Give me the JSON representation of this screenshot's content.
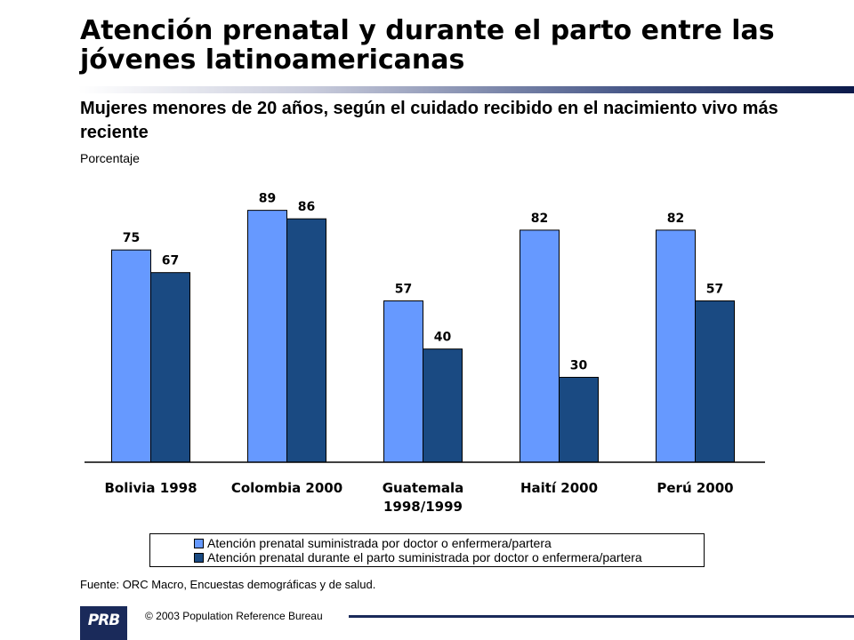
{
  "header": {
    "title": "Atención prenatal y durante el parto entre las jóvenes latinoamericanas",
    "subtitle": "Mujeres menores de 20 años, según el cuidado recibido en el nacimiento vivo más reciente",
    "units": "Porcentaje"
  },
  "colors": {
    "series_prenatal": "#6699ff",
    "series_delivery": "#1a4a82",
    "title_rule": "#0b1a4a"
  },
  "chart_data": {
    "type": "bar",
    "categories": [
      "Bolivia 1998",
      "Colombia 2000",
      "Guatemala 1998/1999",
      "Haití 2000",
      "Perú 2000"
    ],
    "category_lines": [
      [
        "Bolivia 1998"
      ],
      [
        "Colombia 2000"
      ],
      [
        "Guatemala",
        "1998/1999"
      ],
      [
        "Haití 2000"
      ],
      [
        "Perú 2000"
      ]
    ],
    "series": [
      {
        "name": "Atención prenatal suministrada por doctor o enfermera/partera",
        "values": [
          75,
          89,
          57,
          82,
          82
        ]
      },
      {
        "name": "Atención prenatal durante el parto suministrada por doctor o enfermera/partera",
        "values": [
          67,
          86,
          40,
          30,
          57
        ]
      }
    ],
    "ylabel": "Porcentaje",
    "ylim": [
      0,
      100
    ],
    "grid": false,
    "legend": "bottom"
  },
  "source": "Fuente: ORC Macro, Encuestas demográficas y de salud.",
  "footer": {
    "logo_text": "PRB",
    "copyright": "© 2003 Population Reference Bureau"
  }
}
